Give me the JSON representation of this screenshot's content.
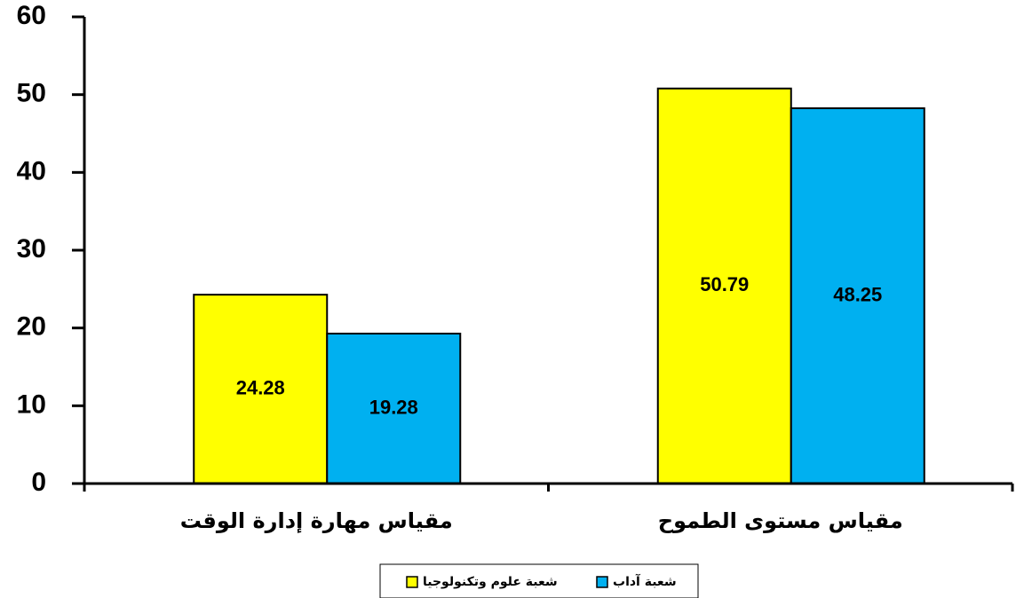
{
  "chart_data": {
    "type": "bar",
    "categories": [
      "مقياس مهارة إدارة الوقت",
      "مقياس مستوى الطموح"
    ],
    "series": [
      {
        "name": "شعبة علوم وتكنولوجيا",
        "color": "#ffff00",
        "values": [
          24.28,
          50.79
        ]
      },
      {
        "name": "شعبة آداب",
        "color": "#00b0f0",
        "values": [
          19.28,
          48.25
        ]
      }
    ],
    "ylim": [
      0,
      60
    ],
    "yticks": [
      0,
      10,
      20,
      30,
      40,
      50,
      60
    ],
    "grid": false,
    "legend": "bottom"
  }
}
